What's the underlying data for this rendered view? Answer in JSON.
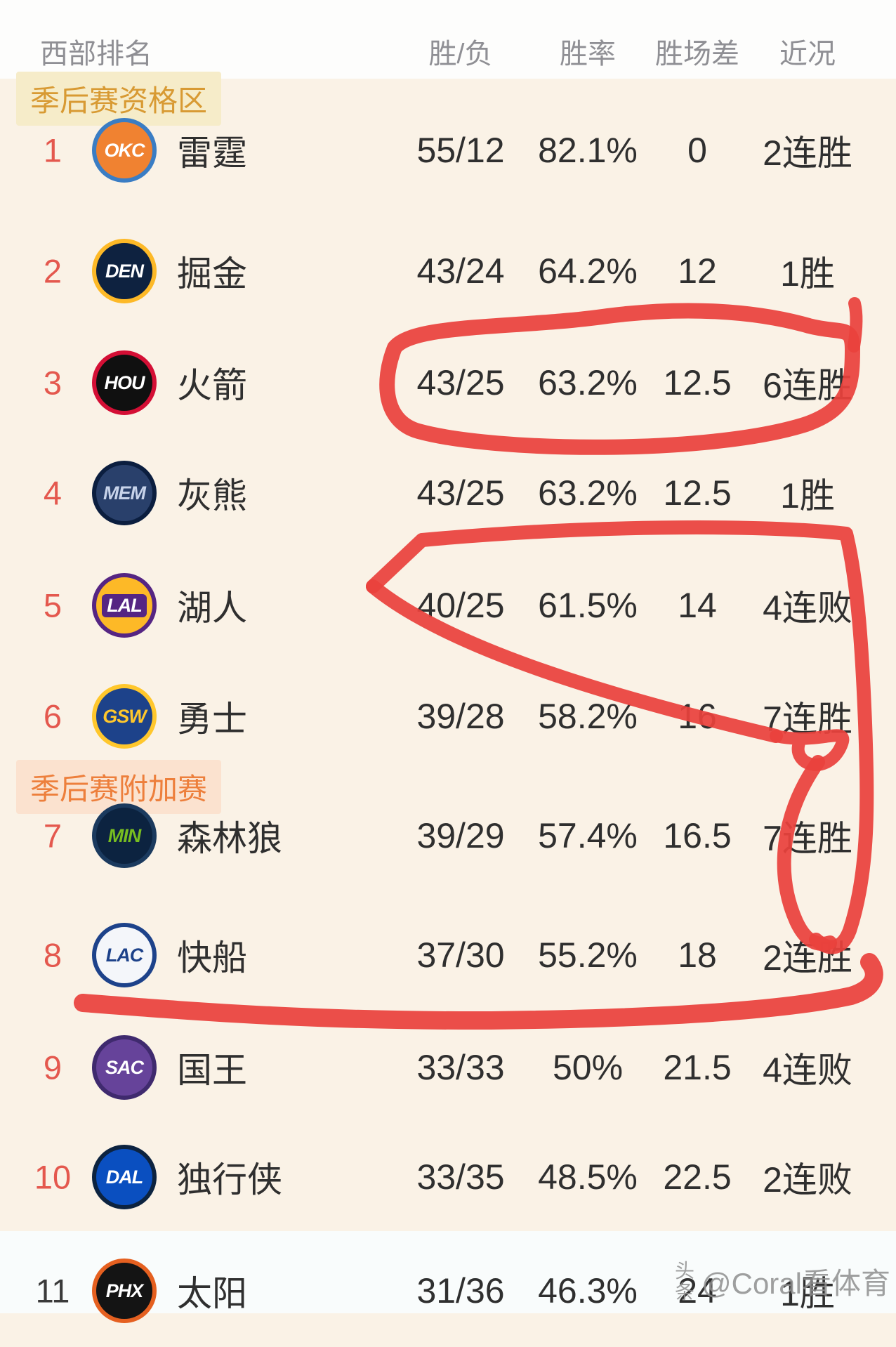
{
  "theme": {
    "page_bg": "#faf2e6",
    "top_band_bg": "#fdfdfc",
    "bottom_band_bg": "#f9fcfc",
    "header_text": "#8f8f94",
    "rank_red": "#e4584e",
    "rank_dark": "#3a3a3a",
    "value_text": "#2f2f2f"
  },
  "header": {
    "rank_col": "西部排名",
    "wl": "胜/负",
    "pct": "胜率",
    "gb": "胜场差",
    "recent": "近况"
  },
  "sections": [
    {
      "label": "季后赛资格区",
      "text_color": "#d89a33",
      "bg_color": "#f6ecc9"
    },
    {
      "label": "季后赛附加赛",
      "text_color": "#ed7f3c",
      "bg_color": "#fbe2cf"
    }
  ],
  "rows": [
    {
      "rank": "1",
      "abbr": "OKC",
      "name": "雷霆",
      "wl": "55/12",
      "pct": "82.1%",
      "gb": "0",
      "recent": "2连胜",
      "rank_dark": false,
      "logo": {
        "bg": "#f08231",
        "border": "#3a7dc4",
        "fg": "#ffffff",
        "pill": ""
      }
    },
    {
      "rank": "2",
      "abbr": "DEN",
      "name": "掘金",
      "wl": "43/24",
      "pct": "64.2%",
      "gb": "12",
      "recent": "1胜",
      "rank_dark": false,
      "logo": {
        "bg": "#0e2240",
        "border": "#fdb927",
        "fg": "#ffffff",
        "pill": ""
      }
    },
    {
      "rank": "3",
      "abbr": "HOU",
      "name": "火箭",
      "wl": "43/25",
      "pct": "63.2%",
      "gb": "12.5",
      "recent": "6连胜",
      "rank_dark": false,
      "logo": {
        "bg": "#101010",
        "border": "#d40f35",
        "fg": "#ffffff",
        "pill": ""
      }
    },
    {
      "rank": "4",
      "abbr": "MEM",
      "name": "灰熊",
      "wl": "43/25",
      "pct": "63.2%",
      "gb": "12.5",
      "recent": "1胜",
      "rank_dark": false,
      "logo": {
        "bg": "#29406b",
        "border": "#0b1e3f",
        "fg": "#c7d3ea",
        "pill": ""
      }
    },
    {
      "rank": "5",
      "abbr": "LAL",
      "name": "湖人",
      "wl": "40/25",
      "pct": "61.5%",
      "gb": "14",
      "recent": "4连败",
      "rank_dark": false,
      "logo": {
        "bg": "#fdb927",
        "border": "#552583",
        "fg": "#ffffff",
        "pill": "#552583"
      }
    },
    {
      "rank": "6",
      "abbr": "GSW",
      "name": "勇士",
      "wl": "39/28",
      "pct": "58.2%",
      "gb": "16",
      "recent": "7连胜",
      "rank_dark": false,
      "logo": {
        "bg": "#1d428a",
        "border": "#ffc72c",
        "fg": "#ffc72c",
        "pill": ""
      }
    },
    {
      "rank": "7",
      "abbr": "MIN",
      "name": "森林狼",
      "wl": "39/29",
      "pct": "57.4%",
      "gb": "16.5",
      "recent": "7连胜",
      "rank_dark": false,
      "logo": {
        "bg": "#0c2340",
        "border": "#1b3a5e",
        "fg": "#78be20",
        "pill": ""
      }
    },
    {
      "rank": "8",
      "abbr": "LAC",
      "name": "快船",
      "wl": "37/30",
      "pct": "55.2%",
      "gb": "18",
      "recent": "2连胜",
      "rank_dark": false,
      "logo": {
        "bg": "#f4f6fa",
        "border": "#1d428a",
        "fg": "#1d428a",
        "pill": ""
      }
    },
    {
      "rank": "9",
      "abbr": "SAC",
      "name": "国王",
      "wl": "33/33",
      "pct": "50%",
      "gb": "21.5",
      "recent": "4连败",
      "rank_dark": false,
      "logo": {
        "bg": "#66439a",
        "border": "#3f2a6e",
        "fg": "#ffffff",
        "pill": ""
      }
    },
    {
      "rank": "10",
      "abbr": "DAL",
      "name": "独行侠",
      "wl": "33/35",
      "pct": "48.5%",
      "gb": "22.5",
      "recent": "2连败",
      "rank_dark": false,
      "logo": {
        "bg": "#0a4fc0",
        "border": "#0c2340",
        "fg": "#ffffff",
        "pill": ""
      }
    },
    {
      "rank": "11",
      "abbr": "PHX",
      "name": "太阳",
      "wl": "31/36",
      "pct": "46.3%",
      "gb": "24",
      "recent": "1胜",
      "rank_dark": true,
      "logo": {
        "bg": "#141414",
        "border": "#e56020",
        "fg": "#ffffff",
        "pill": ""
      }
    }
  ],
  "annotations": {
    "color": "#e9423c",
    "shapes": [
      "hand-drawn-circle-row3-stats",
      "hand-drawn-arrow-row5",
      "hand-drawn-loop-streak-column",
      "hand-drawn-underline-row8"
    ]
  },
  "watermark": {
    "platform": "头条",
    "handle": "@Coral看体育"
  }
}
